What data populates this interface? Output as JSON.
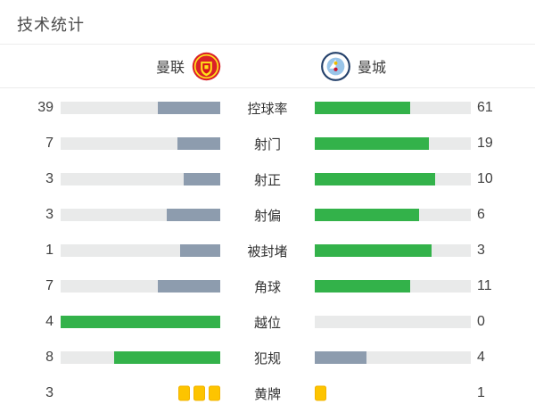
{
  "title": "技术统计",
  "teams": {
    "home": {
      "name": "曼联",
      "badge_icon": "man-utd-crest"
    },
    "away": {
      "name": "曼城",
      "badge_icon": "man-city-crest"
    }
  },
  "colors": {
    "green": "#33b24a",
    "gray": "#8d9cae",
    "track": "#e9eaea",
    "yellow_card": "#fdc400",
    "divider": "#ececec"
  },
  "stats": [
    {
      "label": "控球率",
      "home": 39,
      "away": 61,
      "type": "bar"
    },
    {
      "label": "射门",
      "home": 7,
      "away": 19,
      "type": "bar"
    },
    {
      "label": "射正",
      "home": 3,
      "away": 10,
      "type": "bar"
    },
    {
      "label": "射偏",
      "home": 3,
      "away": 6,
      "type": "bar"
    },
    {
      "label": "被封堵",
      "home": 1,
      "away": 3,
      "type": "bar"
    },
    {
      "label": "角球",
      "home": 7,
      "away": 11,
      "type": "bar"
    },
    {
      "label": "越位",
      "home": 4,
      "away": 0,
      "type": "bar"
    },
    {
      "label": "犯规",
      "home": 8,
      "away": 4,
      "type": "bar"
    },
    {
      "label": "黄牌",
      "home": 3,
      "away": 1,
      "type": "cards"
    }
  ],
  "chart_data": {
    "type": "bar",
    "title": "技术统计",
    "orientation": "horizontal-paired",
    "categories": [
      "控球率",
      "射门",
      "射正",
      "射偏",
      "被封堵",
      "角球",
      "越位",
      "犯规",
      "黄牌"
    ],
    "series": [
      {
        "name": "曼联",
        "values": [
          39,
          7,
          3,
          3,
          1,
          7,
          4,
          8,
          3
        ]
      },
      {
        "name": "曼城",
        "values": [
          61,
          19,
          10,
          6,
          3,
          11,
          0,
          4,
          1
        ]
      }
    ],
    "value_labels_shown": true,
    "fill_rule": "bar fill fraction = value / (home + away); leading side colored green, trailing side slate gray",
    "special_rows": {
      "黄牌": "rendered as yellow card icons (3 left, 1 right) instead of bars"
    },
    "legend_position": "top (team names with club crests)",
    "grid": false,
    "colors": {
      "leading": "#33b24a",
      "trailing": "#8d9cae",
      "track": "#e9eaea",
      "yellow": "#fdc400"
    }
  }
}
